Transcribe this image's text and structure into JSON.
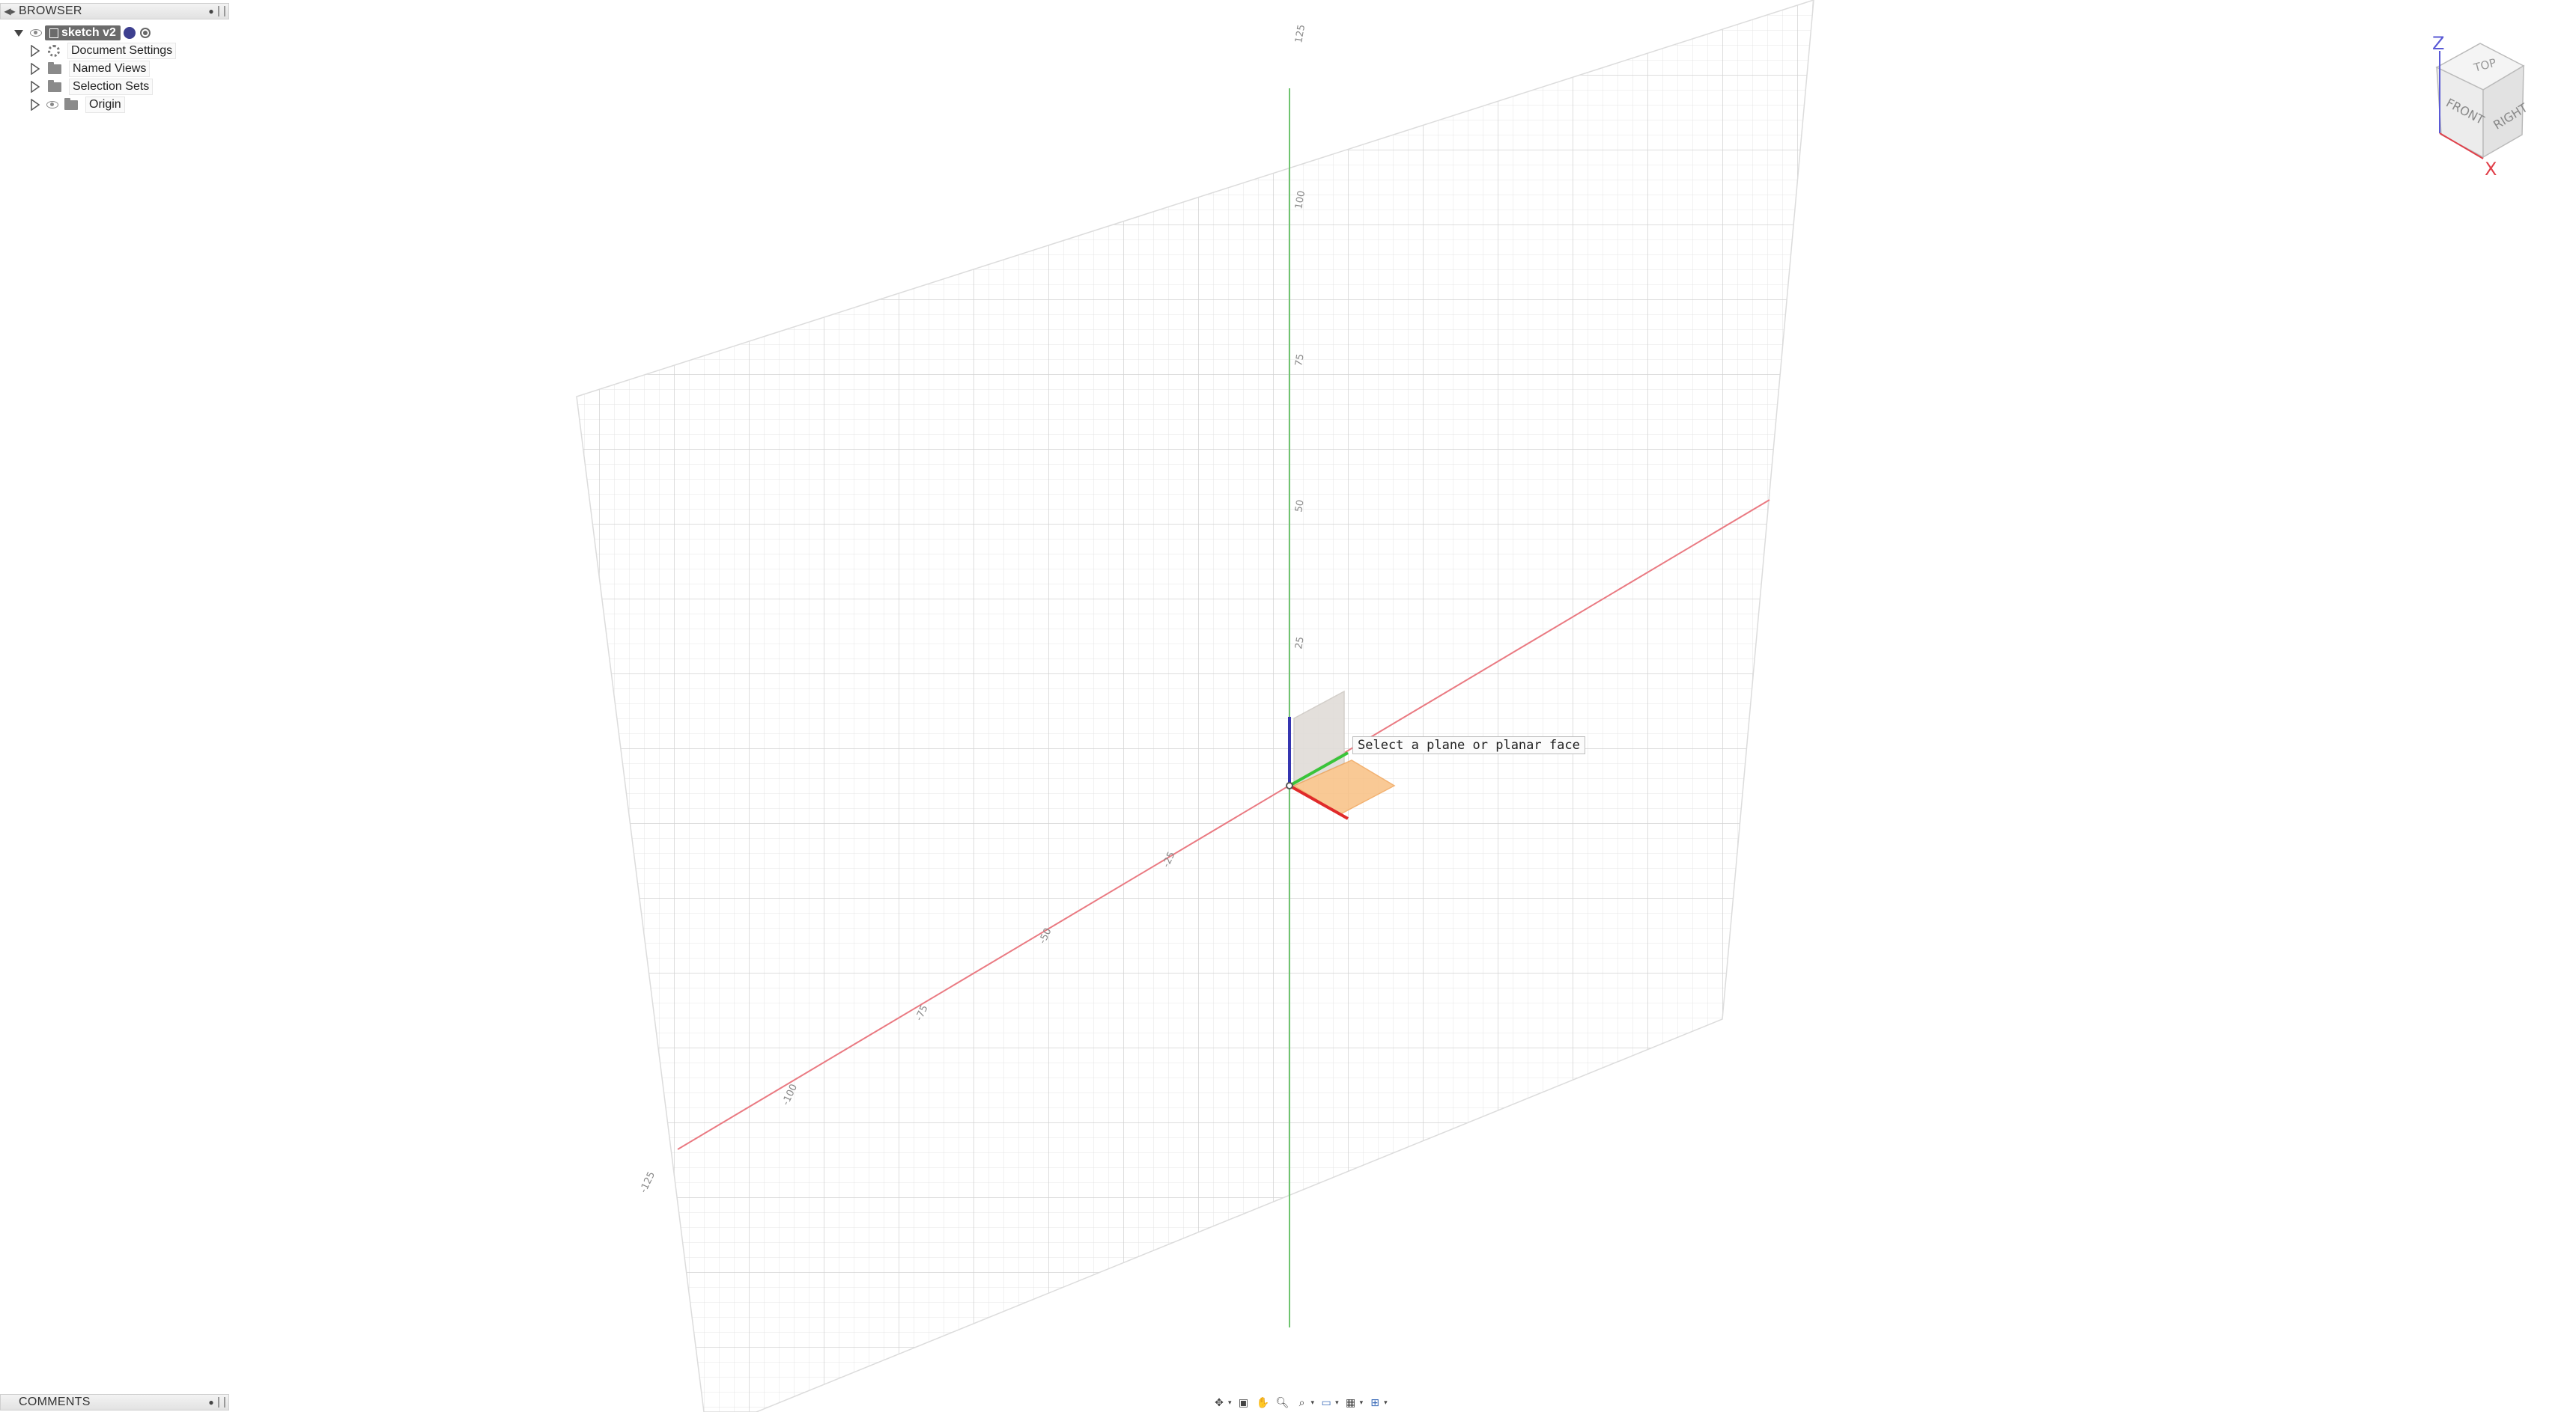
{
  "browser": {
    "title": "BROWSER",
    "document": {
      "name": "sketch v2"
    },
    "items": [
      {
        "label": "Document Settings",
        "icon": "gear-icon",
        "has_eye": false
      },
      {
        "label": "Named Views",
        "icon": "folder-icon",
        "has_eye": false
      },
      {
        "label": "Selection Sets",
        "icon": "folder-icon",
        "has_eye": false
      },
      {
        "label": "Origin",
        "icon": "folder-icon",
        "has_eye": true
      }
    ]
  },
  "comments": {
    "title": "COMMENTS"
  },
  "viewport": {
    "prompt": "Select a plane or planar face",
    "z_axis_ticks": [
      "125",
      "100",
      "75",
      "50",
      "25"
    ],
    "x_axis_ticks": [
      "-25",
      "-50",
      "-75",
      "-100",
      "-125"
    ]
  },
  "viewcube": {
    "faces": {
      "top": "TOP",
      "front": "FRONT",
      "right": "RIGHT"
    },
    "axes": {
      "z": "Z",
      "x": "X"
    },
    "colors": {
      "z": "#5a5ad6",
      "x": "#e0404a"
    }
  },
  "toolbar": {
    "icons": [
      "orbit-icon",
      "look-at-icon",
      "pan-icon",
      "zoom-icon",
      "fit-icon",
      "display-settings-icon",
      "grid-settings-icon",
      "viewports-icon"
    ]
  },
  "colors": {
    "x_axis": "#e8606a",
    "y_axis": "#4cc24c",
    "z_axis": "#3a3ab8",
    "plane_highlight": "#f7b46a",
    "grid": "#e6e6e6"
  }
}
